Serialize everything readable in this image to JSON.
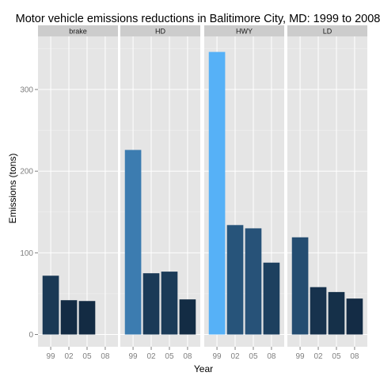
{
  "chart_data": {
    "type": "bar",
    "title": "Motor vehicle emissions reductions in Balitimore City, MD: 1999 to 2008",
    "xlabel": "Year",
    "ylabel": "Emissions (tons)",
    "categories": [
      "99",
      "02",
      "05",
      "08"
    ],
    "yticks": [
      0,
      100,
      200,
      300
    ],
    "ylim": [
      -15,
      365
    ],
    "grid": true,
    "fill_scale": {
      "low": "#132B43",
      "high": "#56B1F7",
      "min": 41,
      "max": 346
    },
    "panels": [
      {
        "name": "brake",
        "values": [
          72,
          42,
          41,
          null
        ]
      },
      {
        "name": "HD",
        "values": [
          226,
          75,
          77,
          43
        ]
      },
      {
        "name": "HWY",
        "values": [
          346,
          134,
          130,
          88
        ]
      },
      {
        "name": "LD",
        "values": [
          119,
          58,
          52,
          44
        ]
      }
    ]
  }
}
